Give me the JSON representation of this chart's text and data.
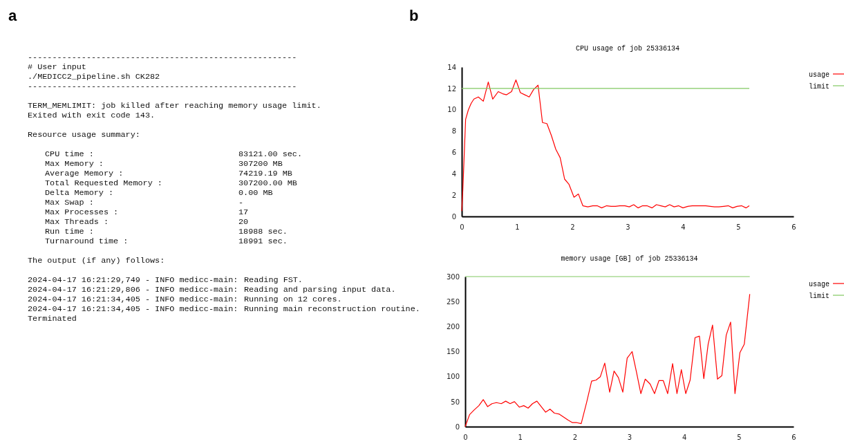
{
  "chart_data": [
    {
      "type": "other",
      "annotations": [
        "a",
        "-------------------------------------------------------",
        "# User input",
        "./MEDICC2_pipeline.sh CK282",
        "-------------------------------------------------------",
        "\nTERM_MEMLIMIT: job killed after reaching memory usage limit.",
        "Exited with exit code 143.",
        "\nResource usage summary:",
        "\n\tCPU time :\t83121.00 sec.",
        "\tMax Memory :\t307200 MB",
        "\tAverage Memory :\t74219.19 MB",
        "\tTotal Requested Memory :\t307200.00 MB",
        "\tDelta Memory :\t0.00 MB",
        "\tMax Swap :\t-",
        "\tMax Processes :\t17",
        "\tMax Threads :\t20",
        "\tRun time :\t18988 sec.",
        "\tTurnaround time :\t18991 sec.",
        "\nThe output (if any) follows:",
        "\n2024-04-17 16:21:29,749 - INFO medicc-main:\tReading FST.",
        "2024-04-17 16:21:29,806 - INFO medicc-main:\tReading and parsing input data.",
        "2024-04-17 16:21:34,405 - INFO medicc-main:\tRunning on 12 cores.",
        "2024-04-17 16:21:34,405 - INFO medicc-main:\tRunning main reconstruction routine.",
        "Terminated"
      ]
    },
    {
      "type": "line",
      "title": "CPU usage of job 25336134",
      "annotations": [
        "b"
      ],
      "xlim": [
        0,
        6
      ],
      "xticks": [
        0,
        1,
        2,
        3,
        4,
        5,
        6
      ],
      "ylim": [
        0,
        14
      ],
      "yticks": [
        0,
        2,
        4,
        6,
        8,
        10,
        12,
        14
      ],
      "legend": "top right",
      "series": [
        {
          "name": "usage",
          "color": "#ff0000",
          "x": [
            0,
            0.02,
            0.07,
            0.12,
            0.17,
            0.22,
            0.3,
            0.39,
            0.48,
            0.56,
            0.66,
            0.74,
            0.81,
            0.9,
            0.98,
            1.06,
            1.14,
            1.22,
            1.3,
            1.38,
            1.46,
            1.54,
            1.62,
            1.7,
            1.78,
            1.86,
            1.94,
            2.03,
            2.11,
            2.19,
            2.28,
            2.37,
            2.45,
            2.53,
            2.62,
            2.7,
            2.78,
            2.86,
            2.95,
            3.03,
            3.11,
            3.19,
            3.27,
            3.35,
            3.44,
            3.52,
            3.6,
            3.68,
            3.76,
            3.84,
            3.92,
            4,
            4.09,
            4.17,
            4.25,
            4.33,
            4.41,
            4.49,
            4.57,
            4.65,
            4.74,
            4.82,
            4.9,
            4.98,
            5.06,
            5.14,
            5.2
          ],
          "values": [
            0.5,
            2.5,
            9.1,
            10,
            10.6,
            11,
            11.2,
            10.8,
            12.6,
            11,
            11.7,
            11.5,
            11.4,
            11.7,
            12.8,
            11.6,
            11.4,
            11.2,
            11.9,
            12.3,
            8.8,
            8.7,
            7.6,
            6.3,
            5.5,
            3.5,
            3,
            1.8,
            2.1,
            1,
            0.9,
            1,
            1,
            0.8,
            1,
            0.95,
            0.95,
            1,
            1,
            0.9,
            1.1,
            0.8,
            1,
            1,
            0.8,
            1.1,
            1,
            0.9,
            1.1,
            0.9,
            1,
            0.8,
            0.95,
            1,
            1,
            1,
            1,
            0.95,
            0.9,
            0.9,
            0.95,
            1,
            0.8,
            0.95,
            1,
            0.8,
            1
          ]
        },
        {
          "name": "limit",
          "color": "#80c860",
          "x": [
            0,
            5.2
          ],
          "values": [
            12,
            12
          ]
        }
      ]
    },
    {
      "type": "line",
      "title": "memory usage [GB] of job 25336134",
      "xlim": [
        0,
        6
      ],
      "xticks": [
        0,
        1,
        2,
        3,
        4,
        5,
        6
      ],
      "ylim": [
        0,
        300
      ],
      "yticks": [
        0,
        50,
        100,
        150,
        200,
        250,
        300
      ],
      "legend": "top right",
      "series": [
        {
          "name": "usage",
          "color": "#ff0000",
          "x": [
            0,
            0.08,
            0.16,
            0.25,
            0.33,
            0.41,
            0.49,
            0.57,
            0.66,
            0.74,
            0.82,
            0.9,
            0.99,
            1.07,
            1.15,
            1.23,
            1.31,
            1.39,
            1.47,
            1.55,
            1.63,
            1.72,
            1.8,
            1.88,
            1.96,
            2.04,
            2.12,
            2.22,
            2.31,
            2.39,
            2.47,
            2.55,
            2.64,
            2.72,
            2.8,
            2.88,
            2.96,
            3.05,
            3.13,
            3.21,
            3.29,
            3.38,
            3.46,
            3.54,
            3.62,
            3.7,
            3.79,
            3.87,
            3.95,
            4.03,
            4.11,
            4.2,
            4.28,
            4.36,
            4.44,
            4.52,
            4.61,
            4.69,
            4.77,
            4.85,
            4.93,
            5.02,
            5.1,
            5.2
          ],
          "values": [
            0,
            24,
            33,
            42,
            54,
            40,
            46,
            48,
            46,
            51,
            46,
            50,
            39,
            42,
            37,
            46,
            51,
            40,
            29,
            35,
            27,
            25,
            19,
            13,
            8,
            8,
            6,
            49,
            91,
            93,
            100,
            127,
            69,
            111,
            98,
            69,
            137,
            150,
            109,
            66,
            95,
            85,
            66,
            92,
            92,
            66,
            126,
            66,
            114,
            66,
            93,
            178,
            181,
            96,
            165,
            203,
            95,
            102,
            183,
            209,
            66,
            148,
            165,
            265
          ]
        },
        {
          "name": "limit",
          "color": "#80c860",
          "x": [
            0,
            5.2
          ],
          "values": [
            300,
            300
          ]
        }
      ]
    }
  ]
}
